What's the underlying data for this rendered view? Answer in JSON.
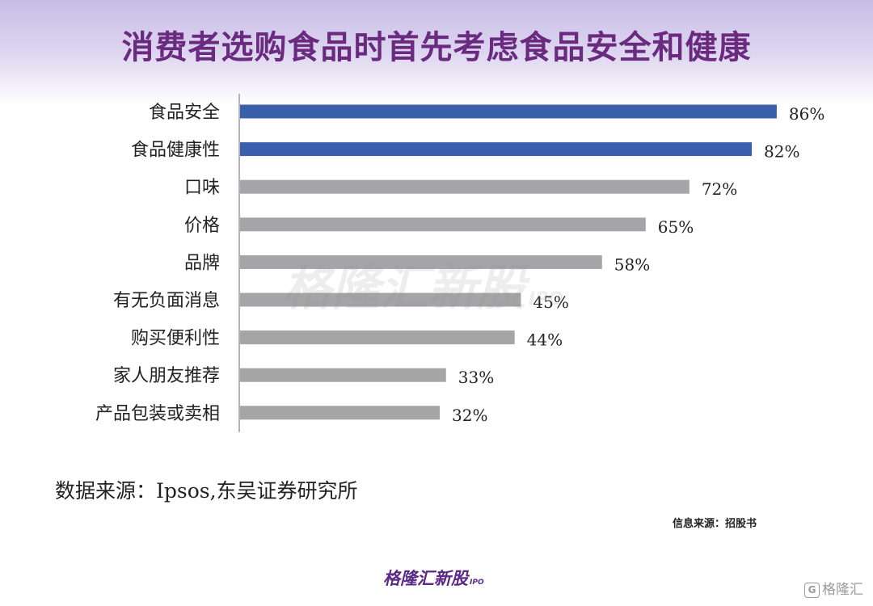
{
  "title": "消费者选购食品时首先考虑食品安全和健康",
  "chart_data": {
    "type": "bar",
    "orientation": "horizontal",
    "categories": [
      "食品安全",
      "食品健康性",
      "口味",
      "价格",
      "品牌",
      "有无负面消息",
      "购买便利性",
      "家人朋友推荐",
      "产品包装或卖相"
    ],
    "values": [
      86,
      82,
      72,
      65,
      58,
      45,
      44,
      33,
      32
    ],
    "value_labels": [
      "86%",
      "82%",
      "72%",
      "65%",
      "58%",
      "45%",
      "44%",
      "33%",
      "32%"
    ],
    "unit": "%",
    "xlim": [
      0,
      100
    ],
    "highlighted_count": 2,
    "colors": {
      "highlight": "#3a5fad",
      "default": "#a5a5a7"
    },
    "grid": false,
    "legend": "none"
  },
  "source": "数据来源：Ipsos,东吴证券研究所",
  "info_source": "信息来源：招股书",
  "brand": {
    "name": "格隆汇新股",
    "suffix": "IPO"
  },
  "corner_logo": {
    "mark": "G",
    "text": "格隆汇"
  },
  "watermark": {
    "text": "格隆汇新股",
    "suffix": "IPO"
  }
}
